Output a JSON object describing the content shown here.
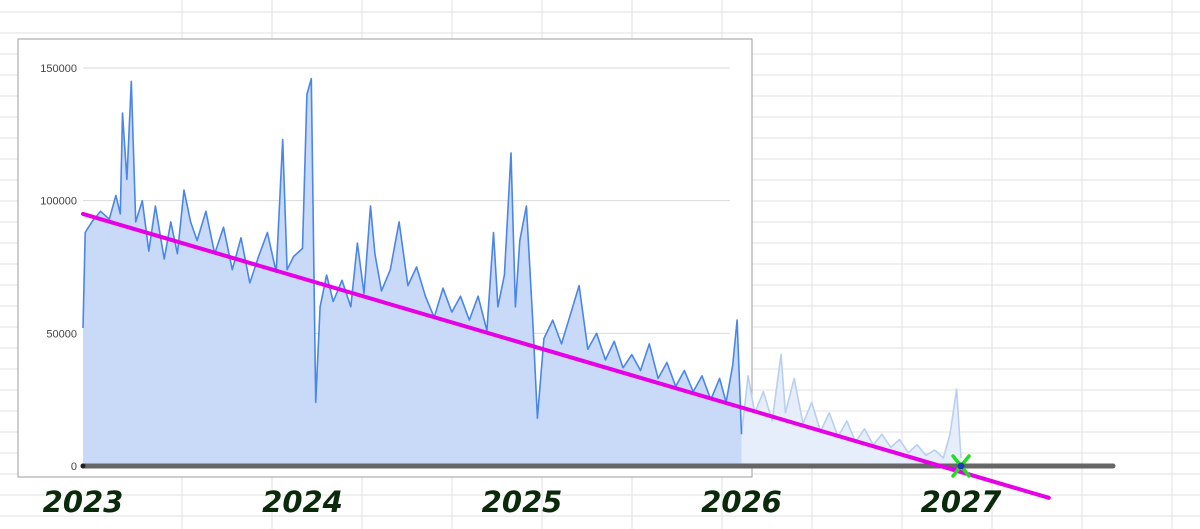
{
  "chart_data": {
    "type": "area",
    "title": "",
    "xlabel": "",
    "ylabel": "",
    "y_ticks": [
      "150000",
      "100000",
      "50000",
      "0"
    ],
    "ylim": [
      0,
      160000
    ],
    "grid": true,
    "legend": "none",
    "year_labels": [
      "2023",
      "2024",
      "2025",
      "2026",
      "2027"
    ],
    "series": [
      {
        "kind": "actual",
        "color": "#4a86e8",
        "fill": "#c9daf8",
        "x_start": 2023.0,
        "x_end": 2026.0,
        "points": [
          [
            2023.0,
            52000
          ],
          [
            2023.01,
            88000
          ],
          [
            2023.04,
            92000
          ],
          [
            2023.08,
            96000
          ],
          [
            2023.12,
            93000
          ],
          [
            2023.15,
            102000
          ],
          [
            2023.17,
            95000
          ],
          [
            2023.18,
            133000
          ],
          [
            2023.2,
            108000
          ],
          [
            2023.22,
            145000
          ],
          [
            2023.24,
            92000
          ],
          [
            2023.27,
            100000
          ],
          [
            2023.3,
            81000
          ],
          [
            2023.33,
            98000
          ],
          [
            2023.37,
            78000
          ],
          [
            2023.4,
            92000
          ],
          [
            2023.43,
            80000
          ],
          [
            2023.46,
            104000
          ],
          [
            2023.49,
            92000
          ],
          [
            2023.52,
            85000
          ],
          [
            2023.56,
            96000
          ],
          [
            2023.6,
            80000
          ],
          [
            2023.64,
            90000
          ],
          [
            2023.68,
            74000
          ],
          [
            2023.72,
            86000
          ],
          [
            2023.76,
            69000
          ],
          [
            2023.8,
            79000
          ],
          [
            2023.84,
            88000
          ],
          [
            2023.88,
            73000
          ],
          [
            2023.91,
            123000
          ],
          [
            2023.93,
            74000
          ],
          [
            2023.96,
            79000
          ],
          [
            2024.0,
            82000
          ],
          [
            2024.02,
            140000
          ],
          [
            2024.04,
            146000
          ],
          [
            2024.06,
            24000
          ],
          [
            2024.08,
            60000
          ],
          [
            2024.11,
            72000
          ],
          [
            2024.14,
            62000
          ],
          [
            2024.18,
            70000
          ],
          [
            2024.22,
            60000
          ],
          [
            2024.25,
            84000
          ],
          [
            2024.28,
            65000
          ],
          [
            2024.31,
            98000
          ],
          [
            2024.33,
            80000
          ],
          [
            2024.36,
            66000
          ],
          [
            2024.4,
            74000
          ],
          [
            2024.44,
            92000
          ],
          [
            2024.48,
            68000
          ],
          [
            2024.52,
            75000
          ],
          [
            2024.56,
            64000
          ],
          [
            2024.6,
            56000
          ],
          [
            2024.64,
            67000
          ],
          [
            2024.68,
            58000
          ],
          [
            2024.72,
            64000
          ],
          [
            2024.76,
            55000
          ],
          [
            2024.8,
            64000
          ],
          [
            2024.84,
            51000
          ],
          [
            2024.87,
            88000
          ],
          [
            2024.89,
            60000
          ],
          [
            2024.92,
            72000
          ],
          [
            2024.95,
            118000
          ],
          [
            2024.97,
            60000
          ],
          [
            2024.99,
            85000
          ],
          [
            2025.02,
            98000
          ],
          [
            2025.05,
            53000
          ],
          [
            2025.07,
            18000
          ],
          [
            2025.1,
            48000
          ],
          [
            2025.14,
            55000
          ],
          [
            2025.18,
            46000
          ],
          [
            2025.22,
            57000
          ],
          [
            2025.26,
            68000
          ],
          [
            2025.3,
            44000
          ],
          [
            2025.34,
            50000
          ],
          [
            2025.38,
            40000
          ],
          [
            2025.42,
            47000
          ],
          [
            2025.46,
            37000
          ],
          [
            2025.5,
            42000
          ],
          [
            2025.54,
            36000
          ],
          [
            2025.58,
            46000
          ],
          [
            2025.62,
            33000
          ],
          [
            2025.66,
            39000
          ],
          [
            2025.7,
            30000
          ],
          [
            2025.74,
            36000
          ],
          [
            2025.78,
            28000
          ],
          [
            2025.82,
            34000
          ],
          [
            2025.86,
            25000
          ],
          [
            2025.9,
            33000
          ],
          [
            2025.93,
            24000
          ],
          [
            2025.96,
            38000
          ],
          [
            2025.98,
            55000
          ],
          [
            2026.0,
            12000
          ]
        ]
      },
      {
        "kind": "faded-projection",
        "color": "#b9cff0",
        "fill": "#e6eefb",
        "x_start": 2026.0,
        "x_end": 2027.0,
        "points": [
          [
            2026.0,
            12000
          ],
          [
            2026.03,
            34000
          ],
          [
            2026.06,
            20000
          ],
          [
            2026.1,
            28000
          ],
          [
            2026.14,
            17000
          ],
          [
            2026.18,
            42000
          ],
          [
            2026.2,
            20000
          ],
          [
            2026.24,
            33000
          ],
          [
            2026.28,
            16000
          ],
          [
            2026.32,
            24000
          ],
          [
            2026.36,
            13000
          ],
          [
            2026.4,
            20000
          ],
          [
            2026.44,
            11000
          ],
          [
            2026.48,
            17000
          ],
          [
            2026.52,
            9000
          ],
          [
            2026.56,
            14000
          ],
          [
            2026.6,
            8000
          ],
          [
            2026.64,
            12000
          ],
          [
            2026.68,
            7000
          ],
          [
            2026.72,
            10000
          ],
          [
            2026.76,
            5000
          ],
          [
            2026.8,
            8000
          ],
          [
            2026.84,
            4000
          ],
          [
            2026.88,
            6000
          ],
          [
            2026.92,
            3000
          ],
          [
            2026.95,
            12000
          ],
          [
            2026.98,
            29000
          ],
          [
            2027.0,
            3000
          ]
        ]
      }
    ],
    "trendline": {
      "color": "#e600e6",
      "from": [
        2023.0,
        95000
      ],
      "to": [
        2027.4,
        -12000
      ]
    },
    "baseline_color": "#666666",
    "zero_marker": {
      "x": 2027.0,
      "y": 0,
      "color": "#22dd22",
      "dot_color": "#1a3fb0"
    }
  }
}
